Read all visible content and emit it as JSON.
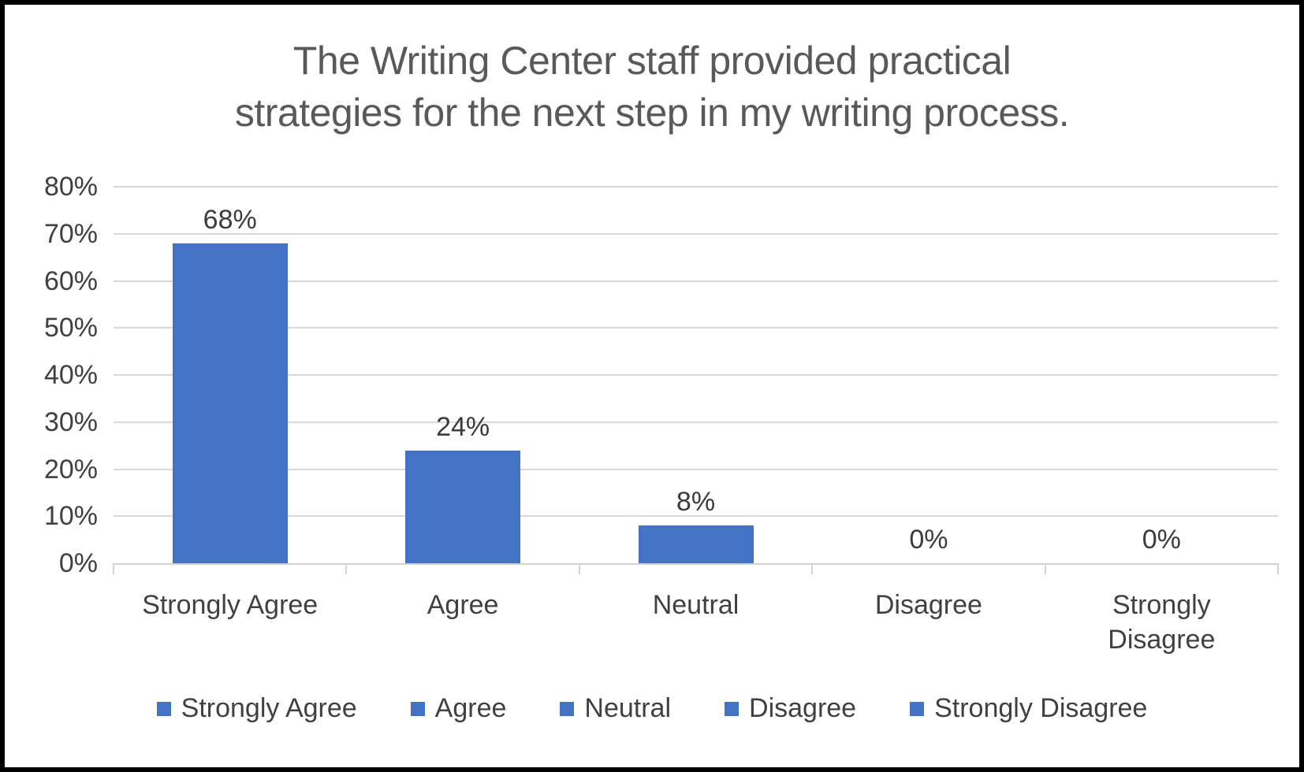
{
  "chart_data": {
    "type": "bar",
    "title": "The Writing Center staff provided practical strategies for the next step in my writing process.",
    "title_lines": [
      "The Writing Center staff provided practical",
      "strategies for the next step in my writing process."
    ],
    "categories": [
      "Strongly Agree",
      "Agree",
      "Neutral",
      "Disagree",
      "Strongly Disagree"
    ],
    "values": [
      68,
      24,
      8,
      0,
      0
    ],
    "data_labels": [
      "68%",
      "24%",
      "8%",
      "0%",
      "0%"
    ],
    "y_ticks": [
      "0%",
      "10%",
      "20%",
      "30%",
      "40%",
      "50%",
      "60%",
      "70%",
      "80%"
    ],
    "ylim": [
      0,
      80
    ],
    "grid": true,
    "legend": [
      "Strongly Agree",
      "Agree",
      "Neutral",
      "Disagree",
      "Strongly Disagree"
    ],
    "legend_position": "bottom",
    "colors": {
      "bar": "#4472C4",
      "title_text": "#595959",
      "axis_text": "#404040",
      "data_label_text": "#3b3b3b",
      "gridline": "#d9d9d9",
      "background": "#ffffff",
      "border": "#000000"
    }
  }
}
